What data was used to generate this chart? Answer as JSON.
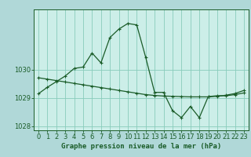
{
  "xlabel": "Graphe pression niveau de la mer (hPa)",
  "outer_bg_color": "#b0d8d8",
  "plot_bg_color": "#cceee8",
  "line_color": "#1a5c28",
  "grid_color": "#88ccbb",
  "hours": [
    0,
    1,
    2,
    3,
    4,
    5,
    6,
    7,
    8,
    9,
    10,
    11,
    12,
    13,
    14,
    15,
    16,
    17,
    18,
    19,
    20,
    21,
    22,
    23
  ],
  "pressure_main": [
    1029.15,
    1029.38,
    1029.58,
    1029.78,
    1030.05,
    1030.1,
    1030.6,
    1030.25,
    1031.15,
    1031.45,
    1031.65,
    1031.6,
    1030.45,
    1029.2,
    1029.2,
    1028.55,
    1028.3,
    1028.7,
    1028.3,
    1029.05,
    1029.08,
    1029.08,
    1029.12,
    1029.18
  ],
  "pressure_smooth": [
    1029.72,
    1029.67,
    1029.62,
    1029.57,
    1029.52,
    1029.47,
    1029.42,
    1029.37,
    1029.32,
    1029.27,
    1029.22,
    1029.17,
    1029.12,
    1029.09,
    1029.07,
    1029.06,
    1029.05,
    1029.04,
    1029.04,
    1029.04,
    1029.06,
    1029.1,
    1029.16,
    1029.27
  ],
  "ylim": [
    1027.85,
    1032.15
  ],
  "yticks": [
    1028,
    1029,
    1030
  ],
  "xlim": [
    -0.5,
    23.5
  ],
  "xticks": [
    0,
    1,
    2,
    3,
    4,
    5,
    6,
    7,
    8,
    9,
    10,
    11,
    12,
    13,
    14,
    15,
    16,
    17,
    18,
    19,
    20,
    21,
    22,
    23
  ],
  "xlabel_fontsize": 6.5,
  "tick_fontsize": 6,
  "marker": "+",
  "markersize": 3.5,
  "linewidth": 0.9
}
